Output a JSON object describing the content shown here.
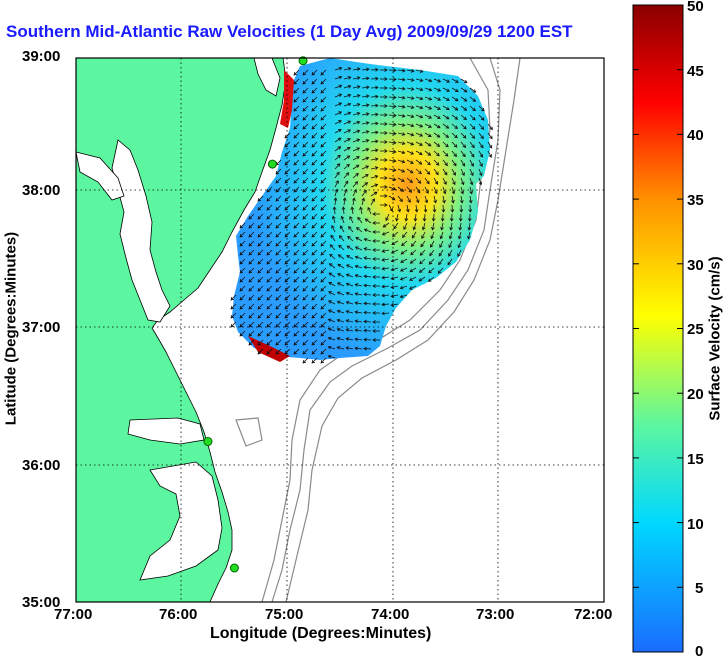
{
  "title": "Southern Mid-Atlantic Raw Velocities (1 Day Avg) 2009/09/29 1200 EST",
  "x_axis": {
    "label": "Longitude (Degrees:Minutes)",
    "ticks": [
      "77:00",
      "76:00",
      "75:00",
      "74:00",
      "73:00",
      "72:00"
    ]
  },
  "y_axis": {
    "label": "Latitude (Degrees:Minutes)",
    "ticks": [
      "39:00",
      "38:00",
      "37:00",
      "36:00",
      "35:00"
    ]
  },
  "colorbar": {
    "label": "Surface Velocity (cm/s)",
    "ticks": [
      "50",
      "45",
      "40",
      "35",
      "30",
      "25",
      "20",
      "15",
      "10",
      "5",
      "0"
    ],
    "range": [
      0,
      50
    ],
    "colors": [
      "#1a6cff",
      "#00d8ff",
      "#5cf6a0",
      "#ffff00",
      "#ff9000",
      "#ff0000",
      "#8a0000"
    ]
  },
  "map": {
    "lon_range": [
      -77,
      -72
    ],
    "lat_range": [
      35,
      39
    ],
    "land_color": "#5cf6a0",
    "ocean_color": "#ffffff",
    "grid": "dotted",
    "stations": [
      {
        "lon": -74.85,
        "lat": 38.98
      },
      {
        "lon": -75.14,
        "lat": 38.22
      },
      {
        "lon": -75.75,
        "lat": 36.18
      },
      {
        "lon": -75.5,
        "lat": 35.25
      }
    ]
  }
}
